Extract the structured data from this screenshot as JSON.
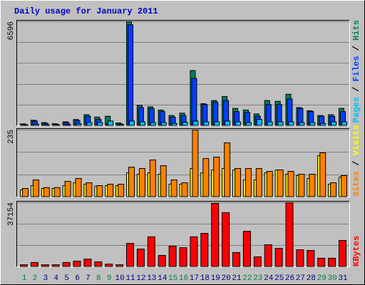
{
  "chart_data": [
    {
      "type": "bar",
      "title": "Daily usage for January 2011",
      "categories": [
        "1",
        "2",
        "3",
        "4",
        "5",
        "6",
        "7",
        "8",
        "9",
        "10",
        "11",
        "12",
        "13",
        "14",
        "15",
        "16",
        "17",
        "18",
        "19",
        "20",
        "21",
        "22",
        "23",
        "24",
        "25",
        "26",
        "27",
        "28",
        "29",
        "30",
        "31"
      ],
      "category_colors": [
        "#008040",
        "#008040",
        "#000080",
        "#000080",
        "#000080",
        "#000080",
        "#000080",
        "#008040",
        "#008040",
        "#000080",
        "#000080",
        "#000080",
        "#000080",
        "#000080",
        "#008040",
        "#008040",
        "#000080",
        "#000080",
        "#000080",
        "#000080",
        "#000080",
        "#008040",
        "#008040",
        "#000080",
        "#000080",
        "#000080",
        "#000080",
        "#000080",
        "#008040",
        "#008040",
        "#000080"
      ],
      "legend_separator": " / ",
      "ylim": [
        0,
        6596
      ],
      "yticks": [
        6596
      ],
      "grid": true,
      "series": [
        {
          "name": "Pages",
          "color": "#00c0ff",
          "values": [
            50,
            100,
            60,
            40,
            70,
            120,
            200,
            200,
            300,
            80,
            300,
            250,
            200,
            200,
            150,
            220,
            300,
            250,
            250,
            300,
            250,
            200,
            400,
            250,
            250,
            250,
            200,
            200,
            150,
            250,
            250
          ]
        },
        {
          "name": "Files",
          "color": "#0040ff",
          "values": [
            80,
            300,
            150,
            100,
            200,
            330,
            600,
            400,
            150,
            120,
            6400,
            1150,
            1100,
            900,
            550,
            650,
            3000,
            1350,
            1500,
            1600,
            900,
            850,
            600,
            1350,
            1350,
            1700,
            1100,
            900,
            600,
            600,
            900
          ]
        },
        {
          "name": "Hits",
          "color": "#00805c",
          "values": [
            120,
            350,
            200,
            130,
            250,
            400,
            700,
            550,
            600,
            180,
            6596,
            1300,
            1200,
            1000,
            650,
            800,
            3500,
            1400,
            1600,
            1850,
            1100,
            1000,
            750,
            1600,
            1550,
            2000,
            1150,
            950,
            650,
            700,
            1100
          ]
        }
      ]
    },
    {
      "type": "bar",
      "ylim": [
        0,
        235
      ],
      "yticks": [
        235
      ],
      "grid": true,
      "series": [
        {
          "name": "Sites",
          "color": "#ff8000",
          "values": [
            30,
            60,
            33,
            33,
            55,
            65,
            50,
            40,
            45,
            45,
            105,
            100,
            130,
            110,
            60,
            50,
            235,
            135,
            140,
            190,
            100,
            100,
            100,
            90,
            95,
            90,
            80,
            80,
            155,
            50,
            75
          ]
        },
        {
          "name": "Visits",
          "color": "#ffff00",
          "values": [
            25,
            40,
            30,
            30,
            40,
            50,
            45,
            38,
            40,
            40,
            85,
            80,
            85,
            80,
            45,
            45,
            100,
            85,
            95,
            100,
            95,
            60,
            60,
            85,
            95,
            80,
            75,
            65,
            145,
            45,
            70
          ]
        }
      ]
    },
    {
      "type": "bar",
      "ylim": [
        0,
        37154
      ],
      "yticks": [
        37154
      ],
      "grid": true,
      "series": [
        {
          "name": "KBytes",
          "color": "#ff0000",
          "values": [
            1200,
            2500,
            1200,
            1200,
            2500,
            3300,
            4500,
            2900,
            1600,
            1200,
            13600,
            10300,
            17400,
            6600,
            12000,
            11100,
            17400,
            19400,
            36700,
            31400,
            8300,
            20600,
            5800,
            12800,
            10700,
            37154,
            9900,
            9500,
            5000,
            5000,
            15300
          ]
        }
      ]
    }
  ]
}
